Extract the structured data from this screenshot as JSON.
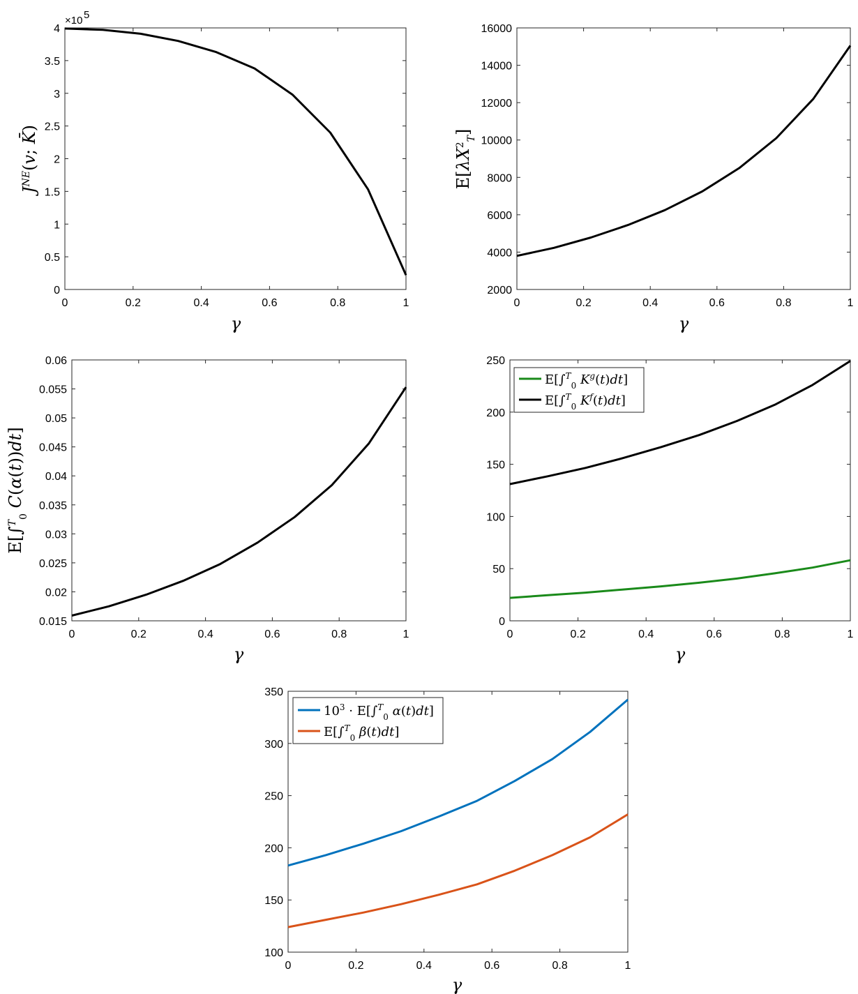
{
  "colors": {
    "black": "#000000",
    "green": "#1a8a1a",
    "blue": "#0072bd",
    "orange": "#d95319"
  },
  "chart_data": [
    {
      "id": "top-left",
      "type": "line",
      "xlabel": "γ",
      "ylabel": "J^NE(v; K̄)",
      "multiplier": "×10^5",
      "xlim": [
        0,
        1
      ],
      "ylim": [
        0,
        4
      ],
      "xticks": [
        "0",
        "0.2",
        "0.4",
        "0.6",
        "0.8",
        "1"
      ],
      "yticks": [
        "0",
        "0.5",
        "1",
        "1.5",
        "2",
        "2.5",
        "3",
        "3.5",
        "4"
      ],
      "series": [
        {
          "color": "#000000",
          "x": [
            0,
            0.111,
            0.222,
            0.333,
            0.444,
            0.556,
            0.667,
            0.778,
            0.889,
            1
          ],
          "y": [
            3.99,
            3.97,
            3.91,
            3.8,
            3.63,
            3.38,
            2.98,
            2.4,
            1.53,
            0.22
          ]
        }
      ]
    },
    {
      "id": "top-right",
      "type": "line",
      "xlabel": "γ",
      "ylabel": "E[λX_T^2]",
      "xlim": [
        0,
        1
      ],
      "ylim": [
        2000,
        16000
      ],
      "xticks": [
        "0",
        "0.2",
        "0.4",
        "0.6",
        "0.8",
        "1"
      ],
      "yticks": [
        "2000",
        "4000",
        "6000",
        "8000",
        "10000",
        "12000",
        "14000",
        "16000"
      ],
      "series": [
        {
          "color": "#000000",
          "x": [
            0,
            0.111,
            0.222,
            0.333,
            0.444,
            0.556,
            0.667,
            0.778,
            0.889,
            1
          ],
          "y": [
            3800,
            4230,
            4780,
            5450,
            6250,
            7250,
            8500,
            10100,
            12200,
            15050
          ]
        }
      ]
    },
    {
      "id": "middle-left",
      "type": "line",
      "xlabel": "γ",
      "ylabel": "E[∫_0^T C(α(t))dt]",
      "xlim": [
        0,
        1
      ],
      "ylim": [
        0.015,
        0.06
      ],
      "xticks": [
        "0",
        "0.2",
        "0.4",
        "0.6",
        "0.8",
        "1"
      ],
      "yticks": [
        "0.015",
        "0.02",
        "0.025",
        "0.03",
        "0.035",
        "0.04",
        "0.045",
        "0.05",
        "0.055",
        "0.06"
      ],
      "series": [
        {
          "color": "#000000",
          "x": [
            0,
            0.111,
            0.222,
            0.333,
            0.444,
            0.556,
            0.667,
            0.778,
            0.889,
            1
          ],
          "y": [
            0.0159,
            0.0175,
            0.0195,
            0.0219,
            0.0248,
            0.0285,
            0.0329,
            0.0384,
            0.0456,
            0.0553
          ]
        }
      ]
    },
    {
      "id": "middle-right",
      "type": "line",
      "xlabel": "γ",
      "ylabel": "",
      "xlim": [
        0,
        1
      ],
      "ylim": [
        0,
        250
      ],
      "xticks": [
        "0",
        "0.2",
        "0.4",
        "0.6",
        "0.8",
        "1"
      ],
      "yticks": [
        "0",
        "50",
        "100",
        "150",
        "200",
        "250"
      ],
      "legend": "top-left",
      "series": [
        {
          "name": "E[∫_0^T K^g(t)dt]",
          "color": "#1a8a1a",
          "x": [
            0,
            0.111,
            0.222,
            0.333,
            0.444,
            0.556,
            0.667,
            0.778,
            0.889,
            1
          ],
          "y": [
            22,
            24.5,
            27,
            30,
            33,
            36.5,
            40.5,
            45.5,
            51,
            58
          ]
        },
        {
          "name": "E[∫_0^T K^f(t)dt]",
          "color": "#000000",
          "x": [
            0,
            0.111,
            0.222,
            0.333,
            0.444,
            0.556,
            0.667,
            0.778,
            0.889,
            1
          ],
          "y": [
            131,
            138.5,
            146.5,
            156,
            166.5,
            178,
            191.5,
            207,
            226,
            249
          ]
        }
      ]
    },
    {
      "id": "bottom",
      "type": "line",
      "xlabel": "γ",
      "ylabel": "",
      "xlim": [
        0,
        1
      ],
      "ylim": [
        100,
        350
      ],
      "xticks": [
        "0",
        "0.2",
        "0.4",
        "0.6",
        "0.8",
        "1"
      ],
      "yticks": [
        "100",
        "150",
        "200",
        "250",
        "300",
        "350"
      ],
      "legend": "top-left",
      "series": [
        {
          "name": "10^3 · E[∫_0^T α(t)dt]",
          "color": "#0072bd",
          "x": [
            0,
            0.111,
            0.222,
            0.333,
            0.444,
            0.556,
            0.667,
            0.778,
            0.889,
            1
          ],
          "y": [
            183,
            193,
            204,
            216,
            230,
            245,
            264,
            285,
            311,
            342
          ]
        },
        {
          "name": "E[∫_0^T β(t)dt]",
          "color": "#d95319",
          "x": [
            0,
            0.111,
            0.222,
            0.333,
            0.444,
            0.556,
            0.667,
            0.778,
            0.889,
            1
          ],
          "y": [
            124,
            131,
            138,
            146,
            155,
            165,
            178,
            193,
            210,
            232
          ]
        }
      ]
    }
  ]
}
